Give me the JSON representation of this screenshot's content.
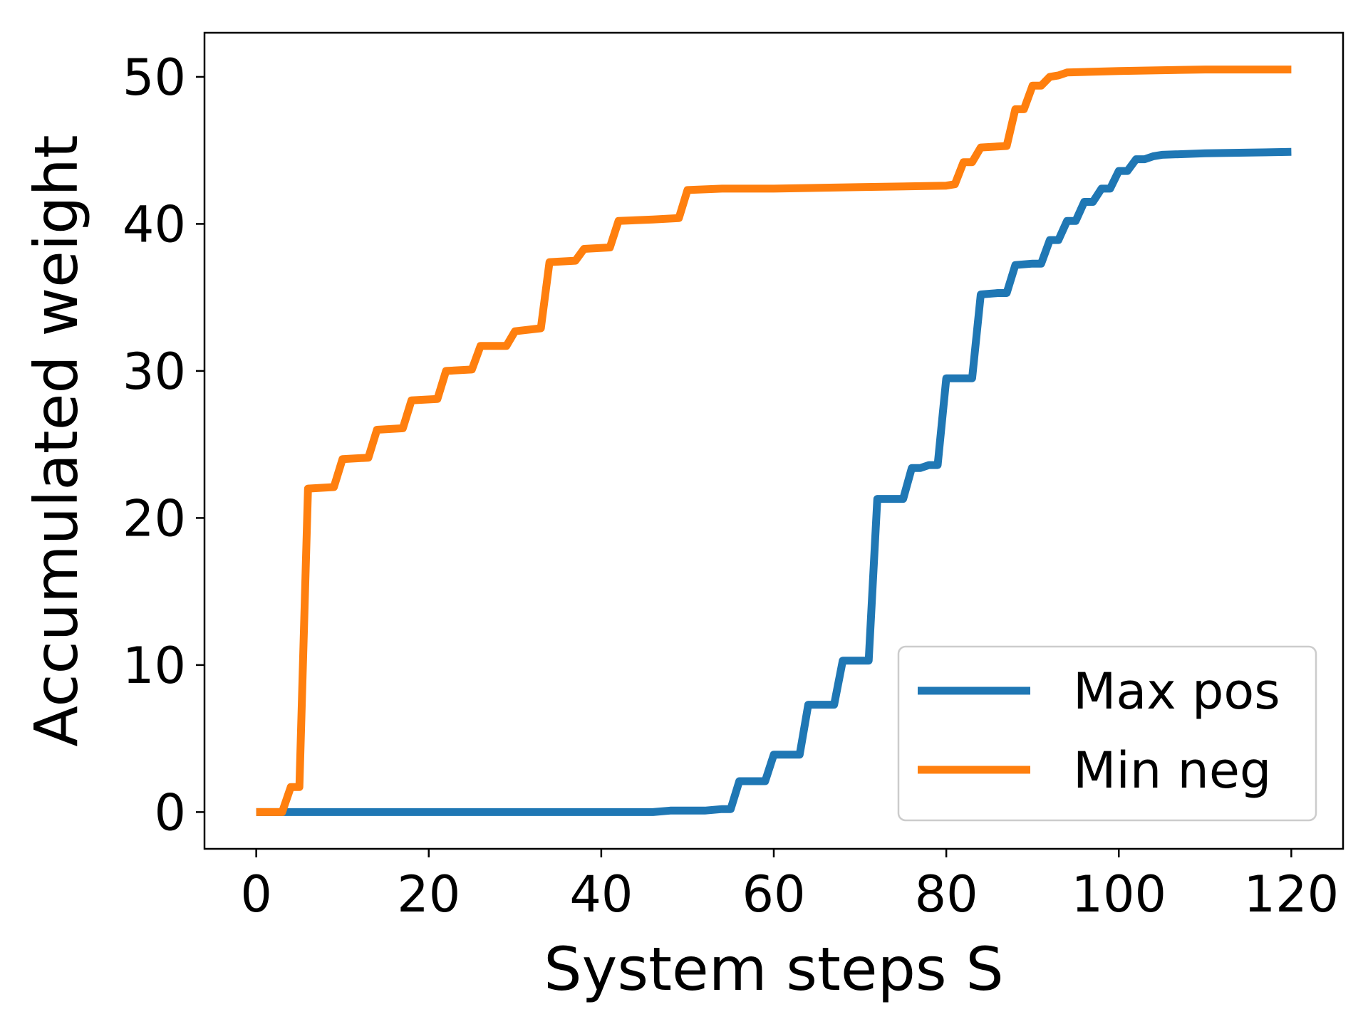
{
  "chart_data": {
    "type": "line",
    "title": "",
    "xlabel": "System steps S",
    "ylabel": "Accumulated weight",
    "xlim": [
      -6,
      126
    ],
    "ylim": [
      -2.5,
      53
    ],
    "xticks": [
      0,
      20,
      40,
      60,
      80,
      100,
      120
    ],
    "yticks": [
      0,
      10,
      20,
      30,
      40,
      50
    ],
    "xtick_labels": [
      "0",
      "20",
      "40",
      "60",
      "80",
      "100",
      "120"
    ],
    "ytick_labels": [
      "0",
      "10",
      "20",
      "30",
      "40",
      "50"
    ],
    "grid": false,
    "legend_position": "lower-right",
    "series": [
      {
        "name": "Max pos",
        "color": "#1f77b4",
        "x": [
          0,
          46,
          48,
          52,
          54,
          55,
          56,
          59,
          60,
          63,
          64,
          67,
          68,
          71,
          72,
          75,
          76,
          77,
          78,
          79,
          80,
          83,
          84,
          86,
          87,
          88,
          90,
          91,
          92,
          93,
          94,
          95,
          96,
          97,
          98,
          99,
          100,
          101,
          102,
          103,
          104,
          105,
          110,
          120
        ],
        "y": [
          0,
          0,
          0.1,
          0.1,
          0.2,
          0.2,
          2.1,
          2.1,
          3.9,
          3.9,
          7.3,
          7.3,
          10.3,
          10.3,
          21.3,
          21.3,
          23.4,
          23.4,
          23.6,
          23.6,
          29.5,
          29.5,
          35.2,
          35.3,
          35.3,
          37.2,
          37.3,
          37.3,
          38.9,
          38.9,
          40.2,
          40.2,
          41.5,
          41.5,
          42.4,
          42.4,
          43.6,
          43.6,
          44.4,
          44.4,
          44.6,
          44.7,
          44.8,
          44.9
        ]
      },
      {
        "name": "Min neg",
        "color": "#ff7f0e",
        "x": [
          0,
          3,
          4,
          5,
          6,
          9,
          10,
          13,
          14,
          17,
          18,
          21,
          22,
          25,
          26,
          29,
          30,
          33,
          34,
          37,
          38,
          41,
          42,
          46,
          49,
          50,
          54,
          60,
          70,
          80,
          81,
          82,
          83,
          84,
          87,
          88,
          89,
          90,
          91,
          92,
          93,
          94,
          100,
          110,
          120
        ],
        "y": [
          0,
          0,
          1.7,
          1.7,
          22.0,
          22.1,
          24.0,
          24.1,
          26.0,
          26.1,
          28.0,
          28.1,
          30.0,
          30.1,
          31.7,
          31.7,
          32.7,
          32.9,
          37.4,
          37.5,
          38.3,
          38.4,
          40.2,
          40.3,
          40.4,
          42.3,
          42.4,
          42.4,
          42.5,
          42.6,
          42.7,
          44.2,
          44.2,
          45.2,
          45.3,
          47.8,
          47.8,
          49.4,
          49.4,
          50.0,
          50.1,
          50.3,
          50.4,
          50.5,
          50.5
        ]
      }
    ]
  }
}
